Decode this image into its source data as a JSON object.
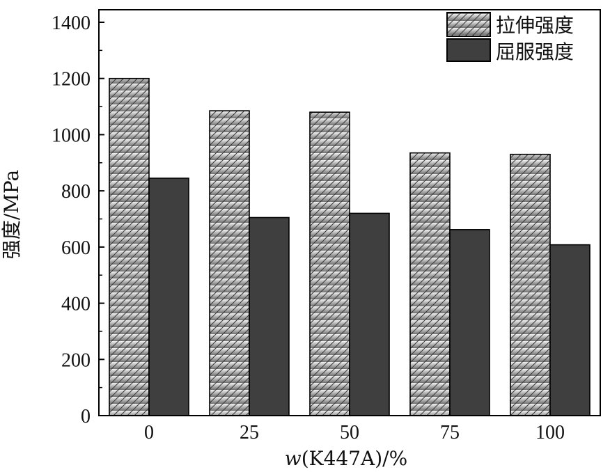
{
  "chart_data": {
    "type": "bar",
    "categories": [
      "0",
      "25",
      "50",
      "75",
      "100"
    ],
    "series": [
      {
        "name": "拉伸强度",
        "values": [
          1200,
          1085,
          1080,
          935,
          930
        ]
      },
      {
        "name": "屈服强度",
        "values": [
          845,
          705,
          720,
          662,
          608
        ]
      }
    ],
    "xlabel_italic": "w",
    "xlabel_rest": "(K447A)/%",
    "ylabel": "强度/MPa",
    "ylim": [
      0,
      1400
    ],
    "yticks": [
      0,
      200,
      400,
      600,
      800,
      1000,
      1200,
      1400
    ],
    "legend_position": "top-right",
    "grid": false,
    "colors": {
      "tensile_top": "#f2f2f2",
      "tensile_bottom": "#707070",
      "tensile_hatch": "#3a3a3a",
      "yield": "#3f3f3f",
      "axis": "#000000"
    }
  }
}
